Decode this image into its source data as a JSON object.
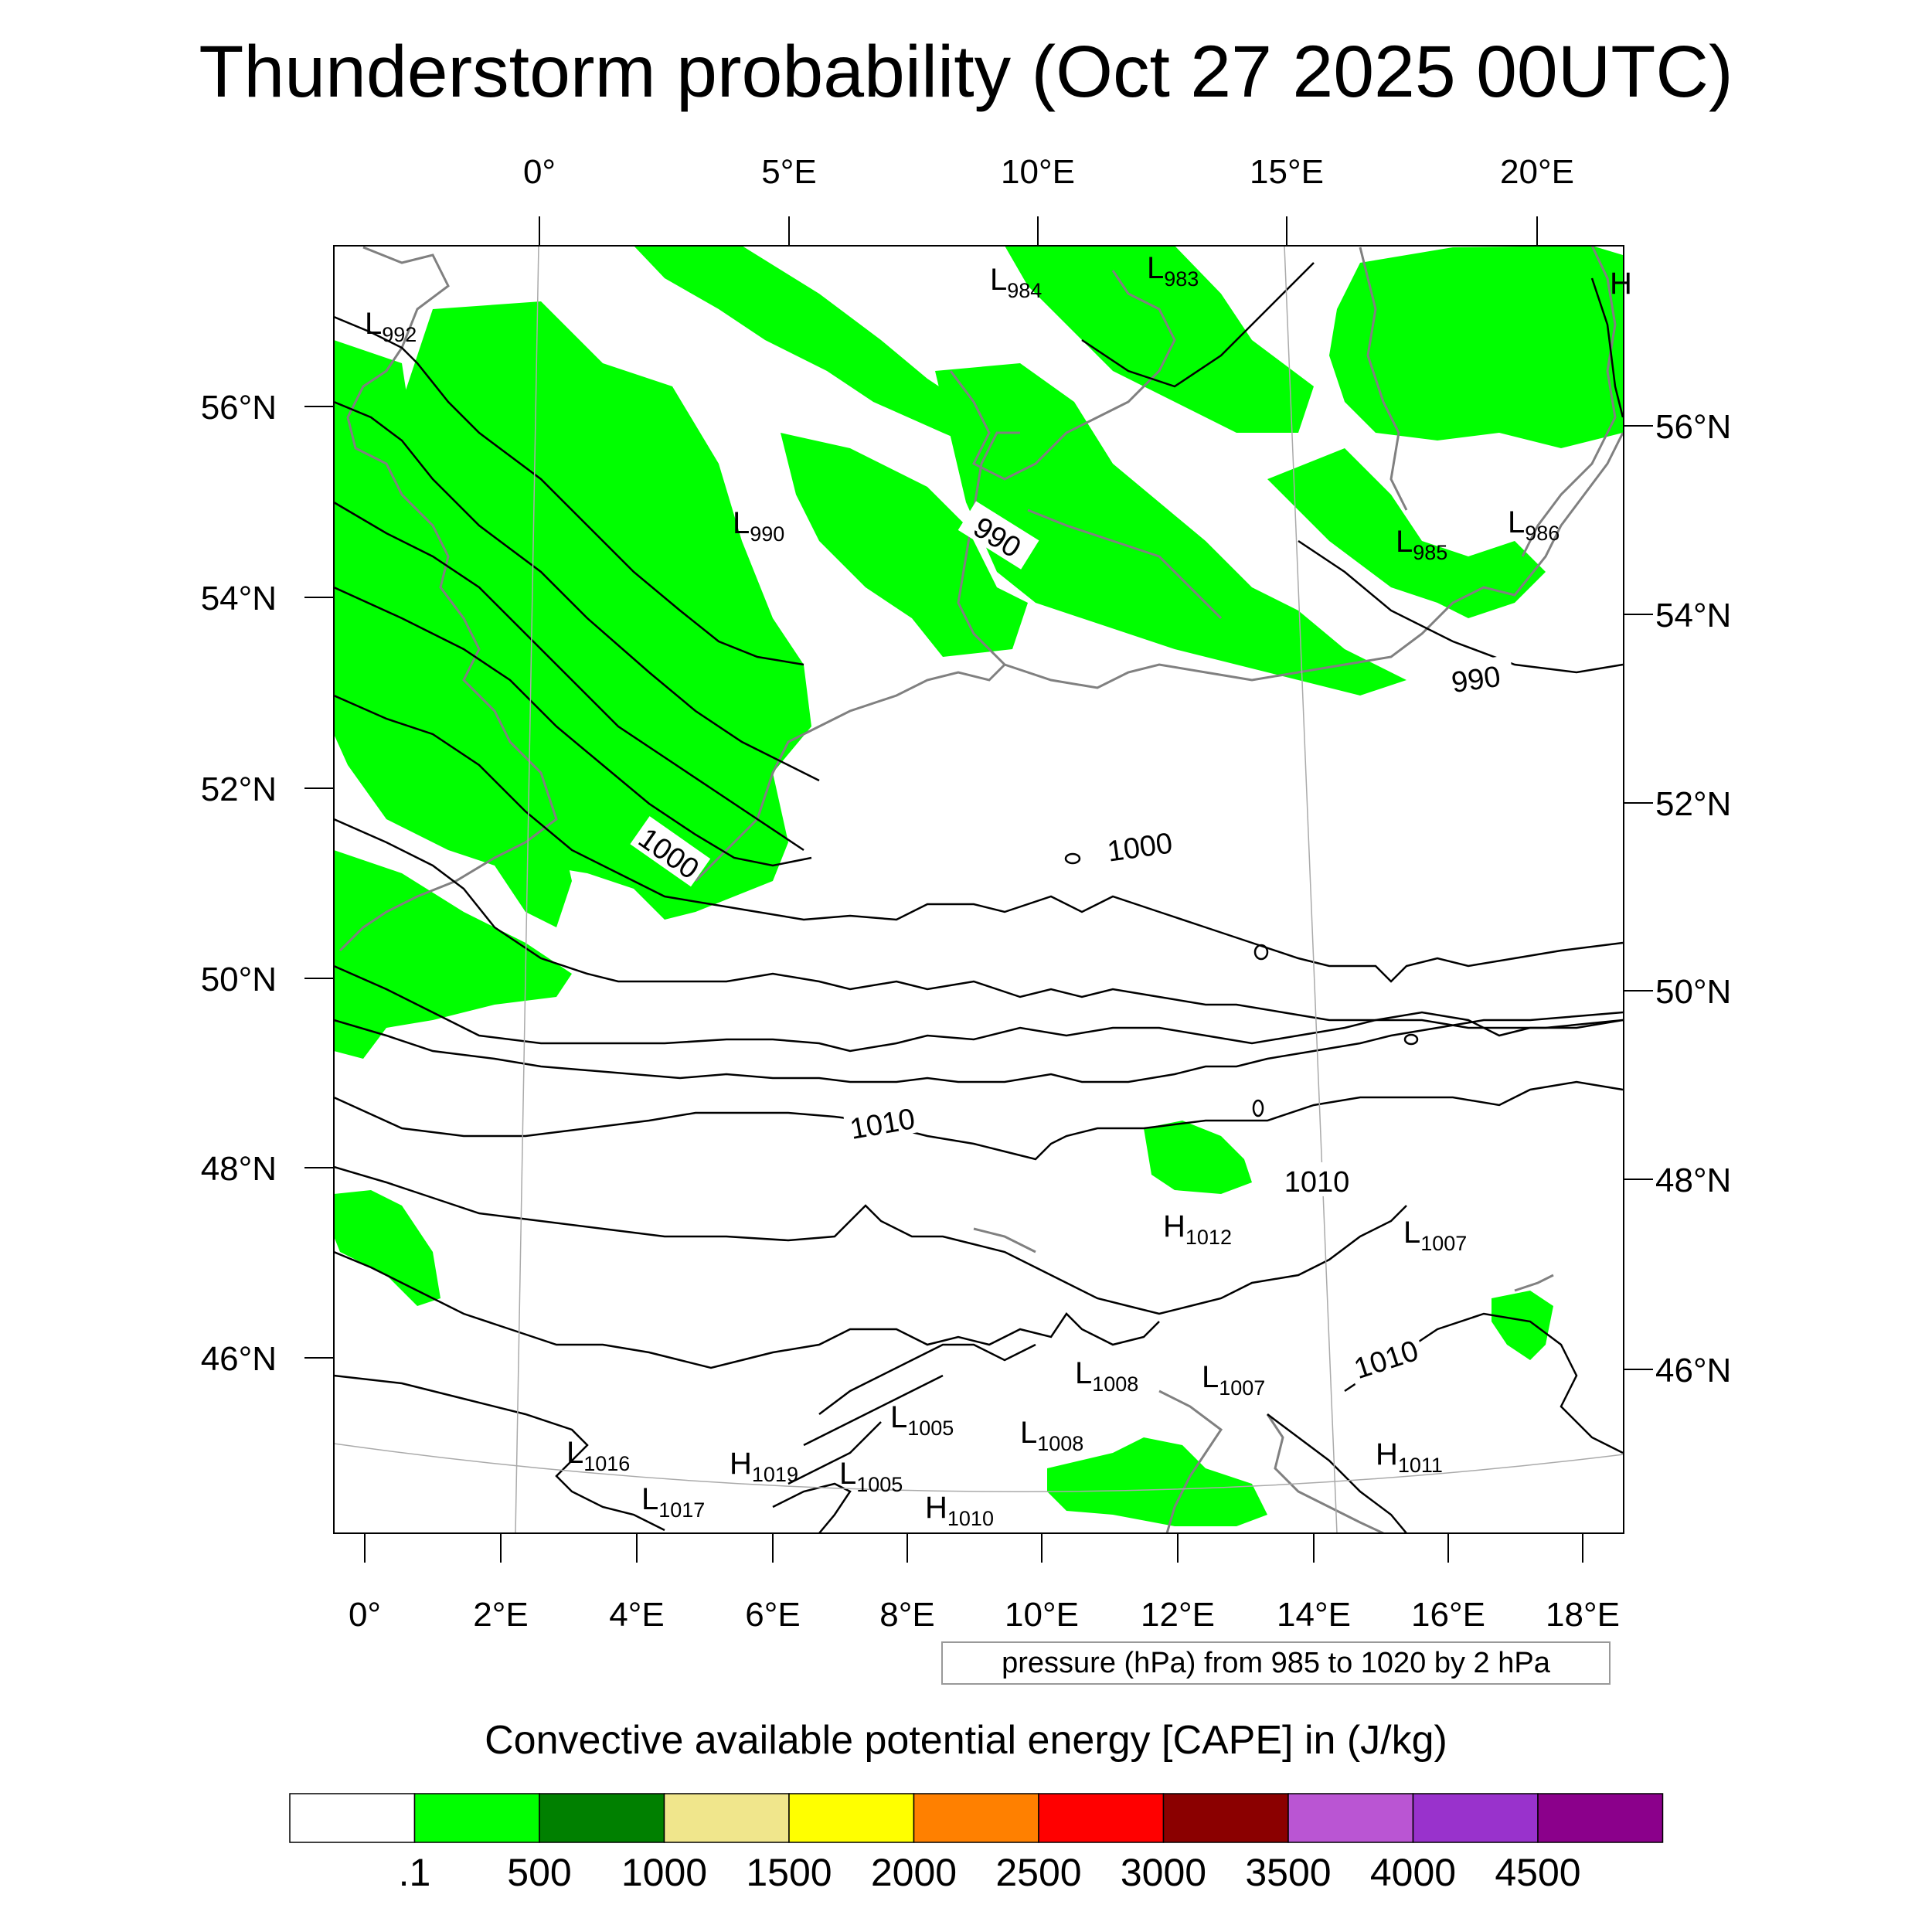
{
  "title": "Thunderstorm probability (Oct 27 2025 00UTC)",
  "map": {
    "type": "weather-map",
    "region": "Europe",
    "top_lon_labels": [
      "0°",
      "5°E",
      "10°E",
      "15°E",
      "20°E"
    ],
    "bottom_lon_labels": [
      "0°",
      "2°E",
      "4°E",
      "6°E",
      "8°E",
      "10°E",
      "12°E",
      "14°E",
      "16°E",
      "18°E"
    ],
    "left_lat_labels": [
      "56°N",
      "54°N",
      "52°N",
      "50°N",
      "48°N",
      "46°N"
    ],
    "right_lat_labels": [
      "56°N",
      "54°N",
      "52°N",
      "50°N",
      "48°N",
      "46°N"
    ],
    "pressure_centers": [
      {
        "type": "L",
        "value": "992"
      },
      {
        "type": "L",
        "value": "984"
      },
      {
        "type": "L",
        "value": "983"
      },
      {
        "type": "L",
        "value": "990"
      },
      {
        "type": "L",
        "value": "985"
      },
      {
        "type": "L",
        "value": "986"
      },
      {
        "type": "H",
        "value": "1012"
      },
      {
        "type": "L",
        "value": "1007"
      },
      {
        "type": "L",
        "value": "1008"
      },
      {
        "type": "L",
        "value": "1007"
      },
      {
        "type": "L",
        "value": "1005"
      },
      {
        "type": "L",
        "value": "1008"
      },
      {
        "type": "L",
        "value": "1016"
      },
      {
        "type": "H",
        "value": "1019"
      },
      {
        "type": "L",
        "value": "1005"
      },
      {
        "type": "L",
        "value": "1017"
      },
      {
        "type": "H",
        "value": "1010"
      },
      {
        "type": "H",
        "value": "1011"
      },
      {
        "type": "H",
        "value": ""
      }
    ],
    "contour_labels": [
      "990",
      "990",
      "1000",
      "1000",
      "1010",
      "1010",
      "1010"
    ],
    "fill_color": "#00ff00",
    "coast_color": "#808080",
    "isobar_color": "#000000"
  },
  "caption": "pressure (hPa) from 985 to 1020 by 2 hPa",
  "colorbar": {
    "title": "Convective available potential energy [CAPE] in (J/kg)",
    "colors": [
      "#ffffff",
      "#00ff00",
      "#008000",
      "#f0e68c",
      "#ffff00",
      "#ff8000",
      "#ff0000",
      "#8b0000",
      "#ba55d3",
      "#9932cc",
      "#8b008b"
    ],
    "labels": [
      ".1",
      "500",
      "1000",
      "1500",
      "2000",
      "2500",
      "3000",
      "3500",
      "4000",
      "4500"
    ]
  }
}
